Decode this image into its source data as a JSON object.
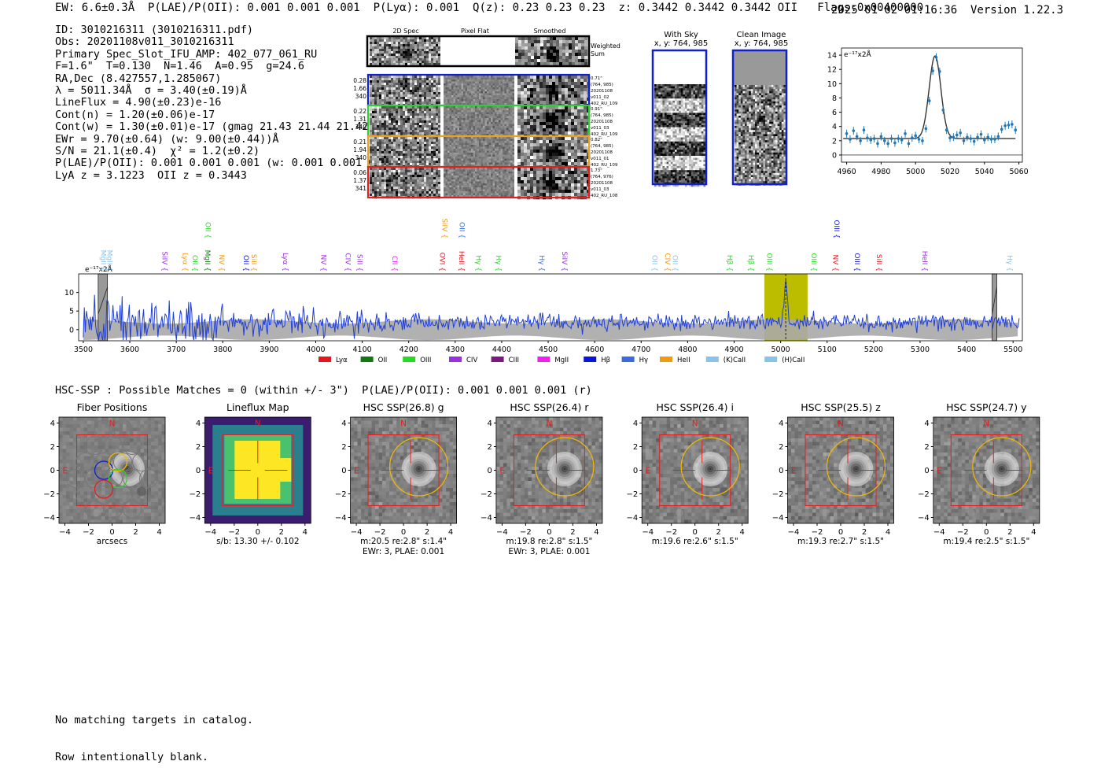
{
  "header": {
    "line": "EW: 6.6±0.3Å  P(LAE)/P(OII): 0.001 0.001 0.001  P(Lyα): 0.001  Q(z): 0.23 0.23 0.23  z: 0.3442 0.3442 0.3442 OII   Flags:0x00400000",
    "right": "2025-01-02 01:16:36  Version 1.22.3"
  },
  "info": [
    "ID: 3010216311 (3010216311.pdf)",
    "Obs: 20201108v011_3010216311",
    "Primary Spec_Slot_IFU_AMP: 402_077_061_RU",
    "F=1.6\"  T=0.130  N=1.46  A=0.95  g=24.6",
    "RA,Dec (8.427557,1.285067)",
    "λ = 5011.34Å  σ = 3.40(±0.19)Å",
    "LineFlux = 4.90(±0.23)e-16",
    "Cont(n) = 1.20(±0.06)e-17",
    "Cont(w) = 1.30(±0.01)e-17 (gmag 21.43 21.44 21.42)",
    "EWr = 9.70(±0.64) (w: 9.00(±0.44))Å",
    "S/N = 21.1(±0.4)  χ² = 1.2(±0.2)",
    "P(LAE)/P(OII): 0.001 0.001 0.001 (w: 0.001 0.001 0.001)",
    "LyA z = 3.1223  OII z = 0.3443"
  ],
  "cutouts": {
    "col_titles": [
      "2D Spec",
      "Pixel Flat",
      "Smoothed"
    ],
    "weighted_label": "Weighted Sum",
    "rows": [
      {
        "left": [
          "0.28",
          "1.66",
          "340"
        ],
        "right": [
          "0.71\"",
          "(764, 985)",
          "20201108",
          "v011_02",
          "402_RU_109"
        ],
        "color": "#1020d0"
      },
      {
        "left": [
          "0.22",
          "1.31",
          "340"
        ],
        "right": [
          "0.91\"",
          "(764, 985)",
          "20201108",
          "v011_03",
          "402_RU_109"
        ],
        "color": "#30d030"
      },
      {
        "left": [
          "0.21",
          "1.94",
          "340"
        ],
        "right": [
          "0.82\"",
          "(764, 985)",
          "20201108",
          "v011_01",
          "402_RU_109"
        ],
        "color": "#f0a020"
      },
      {
        "left": [
          "0.06",
          "1.37",
          "341"
        ],
        "right": [
          "1.73\"",
          "(764, 976)",
          "20201108",
          "v011_03",
          "402_RU_108"
        ],
        "color": "#e02020"
      }
    ]
  },
  "sky_panels": [
    {
      "title": "With Sky",
      "coords": "x, y: 764, 985"
    },
    {
      "title": "Clean Image",
      "coords": "x, y: 764, 985"
    }
  ],
  "colors": {
    "blue": "#1f3fd8",
    "data_blue": "#1f77b4",
    "olive": "#bcbd00",
    "gray": "#a8a8a8",
    "red": "#e02020",
    "gold": "#f5b800"
  },
  "line_fit": {
    "unit": "e⁻¹⁷x2Å",
    "xlim": [
      4957,
      5062
    ],
    "ylim": [
      -1,
      15
    ],
    "xticks": [
      4960,
      4980,
      5000,
      5020,
      5040,
      5060
    ],
    "yticks": [
      0,
      2,
      4,
      6,
      8,
      10,
      12,
      14
    ],
    "model": {
      "center": 5011.3,
      "sigma": 3.4,
      "amp": 11.6,
      "continuum": 2.3
    },
    "points": [
      [
        4960,
        3.0
      ],
      [
        4962,
        2.2
      ],
      [
        4964,
        3.4
      ],
      [
        4966,
        2.6
      ],
      [
        4968,
        2.0
      ],
      [
        4970,
        3.5
      ],
      [
        4972,
        2.4
      ],
      [
        4974,
        2.1
      ],
      [
        4976,
        2.3
      ],
      [
        4978,
        1.6
      ],
      [
        4980,
        2.6
      ],
      [
        4982,
        2.0
      ],
      [
        4984,
        1.6
      ],
      [
        4986,
        2.3
      ],
      [
        4988,
        1.7
      ],
      [
        4990,
        2.3
      ],
      [
        4992,
        2.1
      ],
      [
        4994,
        3.0
      ],
      [
        4996,
        1.6
      ],
      [
        4998,
        2.4
      ],
      [
        5000,
        2.7
      ],
      [
        5002,
        2.2
      ],
      [
        5004,
        2.0
      ],
      [
        5006,
        3.7
      ],
      [
        5008,
        7.6
      ],
      [
        5010,
        11.8
      ],
      [
        5012,
        13.7
      ],
      [
        5014,
        11.7
      ],
      [
        5016,
        6.3
      ],
      [
        5018,
        3.5
      ],
      [
        5020,
        2.4
      ],
      [
        5022,
        2.5
      ],
      [
        5024,
        2.8
      ],
      [
        5026,
        3.1
      ],
      [
        5028,
        2.0
      ],
      [
        5030,
        2.5
      ],
      [
        5032,
        2.3
      ],
      [
        5034,
        1.9
      ],
      [
        5036,
        2.5
      ],
      [
        5038,
        2.9
      ],
      [
        5040,
        2.1
      ],
      [
        5042,
        2.5
      ],
      [
        5044,
        2.2
      ],
      [
        5046,
        2.2
      ],
      [
        5048,
        2.6
      ],
      [
        5050,
        3.6
      ],
      [
        5052,
        4.1
      ],
      [
        5054,
        4.2
      ],
      [
        5056,
        4.3
      ],
      [
        5058,
        3.5
      ]
    ]
  },
  "full_spectrum": {
    "unit": "e⁻¹⁷x2Å",
    "xlim": [
      3490,
      5520
    ],
    "ylim": [
      -3,
      15
    ],
    "xticks": [
      3500,
      3600,
      3700,
      3800,
      3900,
      4000,
      4100,
      4200,
      4300,
      4400,
      4500,
      4600,
      4700,
      4800,
      4900,
      5000,
      5100,
      5200,
      5300,
      5400,
      5500
    ],
    "yticks": [
      0,
      5,
      10
    ],
    "highlight": [
      4965,
      5058
    ],
    "emission_peak": {
      "x": 5011,
      "y": 13.7
    },
    "masks": [
      [
        3532,
        3552
      ],
      [
        5455,
        5465
      ]
    ],
    "legend": [
      {
        "label": "Lyα",
        "color": "#e8141e"
      },
      {
        "label": "OII",
        "color": "#107a10"
      },
      {
        "label": "OIII",
        "color": "#22dd22"
      },
      {
        "label": "CIV",
        "color": "#9b30e0"
      },
      {
        "label": "CIII",
        "color": "#7a1a80"
      },
      {
        "label": "MgII",
        "color": "#ee22ee"
      },
      {
        "label": "Hβ",
        "color": "#0a14e0"
      },
      {
        "label": "Hγ",
        "color": "#3a6ae0"
      },
      {
        "label": "HeII",
        "color": "#f09a10"
      },
      {
        "label": "(K)CaII",
        "color": "#88c4e8"
      },
      {
        "label": "(H)CaII",
        "color": "#88c4e8"
      }
    ],
    "line_labels": [
      {
        "x": 3538,
        "label": "MgII",
        "color": "#88c4e8",
        "row": 1
      },
      {
        "x": 3552,
        "label": "MgII",
        "color": "#88c4e8",
        "row": 1
      },
      {
        "x": 3670,
        "label": "SiIV",
        "color": "#9b30e0",
        "row": 1
      },
      {
        "x": 3714,
        "label": "Lyα",
        "color": "#f09a10",
        "row": 1
      },
      {
        "x": 3735,
        "label": "OII",
        "color": "#22dd22",
        "row": 1
      },
      {
        "x": 3762,
        "label": "MgII",
        "color": "#107a10",
        "row": 1
      },
      {
        "x": 3763,
        "label": "OII",
        "color": "#22dd22",
        "row": 3
      },
      {
        "x": 3793,
        "label": "NV",
        "color": "#f09a10",
        "row": 1
      },
      {
        "x": 3845,
        "label": "OII",
        "color": "#0a14e0",
        "row": 1
      },
      {
        "x": 3862,
        "label": "SiII",
        "color": "#f09a10",
        "row": 1
      },
      {
        "x": 3930,
        "label": "Lyα",
        "color": "#9b30e0",
        "row": 1
      },
      {
        "x": 4012,
        "label": "NV",
        "color": "#9b30e0",
        "row": 1
      },
      {
        "x": 4064,
        "label": "CIV",
        "color": "#9b30e0",
        "row": 1
      },
      {
        "x": 4090,
        "label": "SiII",
        "color": "#9b30e0",
        "row": 1
      },
      {
        "x": 4165,
        "label": "CII",
        "color": "#ee22ee",
        "row": 1
      },
      {
        "x": 4267,
        "label": "OVI",
        "color": "#e8141e",
        "row": 1
      },
      {
        "x": 4272,
        "label": "SiIV",
        "color": "#f09a10",
        "row": 2
      },
      {
        "x": 4309,
        "label": "HeII",
        "color": "#e8141e",
        "row": 1
      },
      {
        "x": 4310,
        "label": "OII",
        "color": "#3a6ae0",
        "row": 2
      },
      {
        "x": 4345,
        "label": "Hγ",
        "color": "#22dd22",
        "row": 1
      },
      {
        "x": 4388,
        "label": "Hγ",
        "color": "#22dd22",
        "row": 1
      },
      {
        "x": 4481,
        "label": "Hγ",
        "color": "#3a6ae0",
        "row": 1
      },
      {
        "x": 4530,
        "label": "SiIV",
        "color": "#9b30e0",
        "row": 1
      },
      {
        "x": 4724,
        "label": "OII",
        "color": "#88c4e8",
        "row": 1
      },
      {
        "x": 4752,
        "label": "CIV",
        "color": "#f09a10",
        "row": 1
      },
      {
        "x": 4768,
        "label": "OII",
        "color": "#88c4e8",
        "row": 1
      },
      {
        "x": 4886,
        "label": "Hβ",
        "color": "#22dd22",
        "row": 1
      },
      {
        "x": 4931,
        "label": "Hβ",
        "color": "#22dd22",
        "row": 1
      },
      {
        "x": 4971,
        "label": "OIII",
        "color": "#22dd22",
        "row": 1
      },
      {
        "x": 5067,
        "label": "OIII",
        "color": "#22dd22",
        "row": 1
      },
      {
        "x": 5113,
        "label": "NV",
        "color": "#e8141e",
        "row": 1
      },
      {
        "x": 5116,
        "label": "OIII",
        "color": "#0a14e0",
        "row": 2
      },
      {
        "x": 5160,
        "label": "OIII",
        "color": "#0a14e0",
        "row": 1
      },
      {
        "x": 5207,
        "label": "SiII",
        "color": "#e8141e",
        "row": 1
      },
      {
        "x": 5305,
        "label": "HeII",
        "color": "#9b30e0",
        "row": 1
      },
      {
        "x": 5488,
        "label": "Hγ",
        "color": "#88c4e8",
        "row": 1
      }
    ]
  },
  "hsc": {
    "line": "HSC-SSP : Possible Matches = 0 (within +/- 3\")  P(LAE)/P(OII): 0.001 0.001 0.001 (r)",
    "axis_ticks": [
      -4,
      -2,
      0,
      2,
      4
    ],
    "north": "N",
    "east": "E",
    "panels": [
      {
        "title": "Fiber Positions",
        "caption1": "arcsecs",
        "caption2": "",
        "kind": "fiber"
      },
      {
        "title": "Lineflux Map",
        "caption1": "s/b: 13.30 +/- 0.102",
        "caption2": "",
        "kind": "flux"
      },
      {
        "title": "HSC SSP(26.8) g",
        "caption1": "m:20.5  re:2.8\"  s:1.4\"",
        "caption2": "EWr: 3, PLAE: 0.001",
        "kind": "img"
      },
      {
        "title": "HSC SSP(26.4) r",
        "caption1": "m:19.8  re:2.8\"  s:1.5\"",
        "caption2": "EWr: 3, PLAE: 0.001",
        "kind": "img"
      },
      {
        "title": "HSC SSP(26.4) i",
        "caption1": "m:19.6  re:2.6\"  s:1.5\"",
        "caption2": "",
        "kind": "img"
      },
      {
        "title": "HSC SSP(25.5) z",
        "caption1": "m:19.3  re:2.7\"  s:1.5\"",
        "caption2": "",
        "kind": "img"
      },
      {
        "title": "HSC SSP(24.7) y",
        "caption1": "m:19.4  re:2.5\"  s:1.5\"",
        "caption2": "",
        "kind": "img"
      }
    ]
  },
  "footer": [
    "No matching targets in catalog.",
    "Row intentionally blank."
  ],
  "chart_data": [
    {
      "type": "scatter",
      "title": "",
      "ylabel": "e⁻¹⁷x2Å",
      "xlabel": "",
      "xlim": [
        4957,
        5062
      ],
      "ylim": [
        -1,
        15
      ],
      "note": "Line fit: points with error bars plus Gaussian model (center 5011.3, sigma 3.4, amp 11.6, continuum 2.3)"
    },
    {
      "type": "line",
      "title": "",
      "ylabel": "e⁻¹⁷x2Å",
      "xlim": [
        3490,
        5520
      ],
      "ylim": [
        -3,
        15
      ],
      "note": "Full spectrum 3500–5500Å, noise band gray, OIII/OII line at 5011Å highlighted"
    }
  ]
}
